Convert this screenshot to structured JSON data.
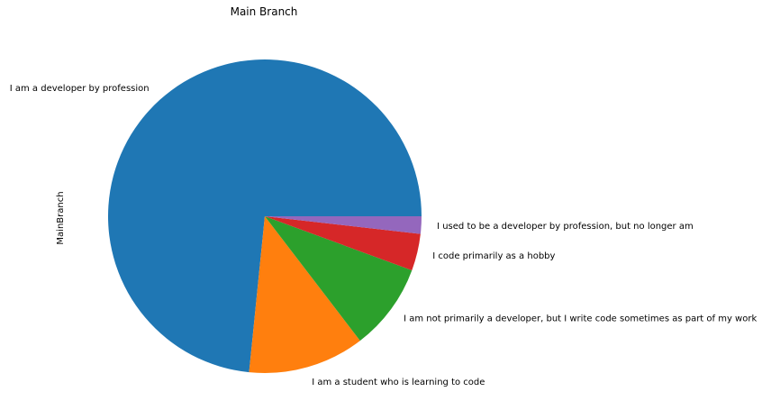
{
  "chart_data": {
    "type": "pie",
    "title": "Main Branch",
    "ylabel": "MainBranch",
    "slices": [
      {
        "label": "I am a developer by profession",
        "value": 73.4,
        "color": "#1f77b4"
      },
      {
        "label": "I am a student who is learning to code",
        "value": 12.0,
        "color": "#ff7f0e"
      },
      {
        "label": "I am not primarily a developer, but I write code sometimes as part of my work",
        "value": 9.0,
        "color": "#2ca02c"
      },
      {
        "label": "I code primarily as a hobby",
        "value": 3.8,
        "color": "#d62728"
      },
      {
        "label": "I used to be a developer by profession, but no longer am",
        "value": 1.8,
        "color": "#9467bd"
      }
    ]
  }
}
